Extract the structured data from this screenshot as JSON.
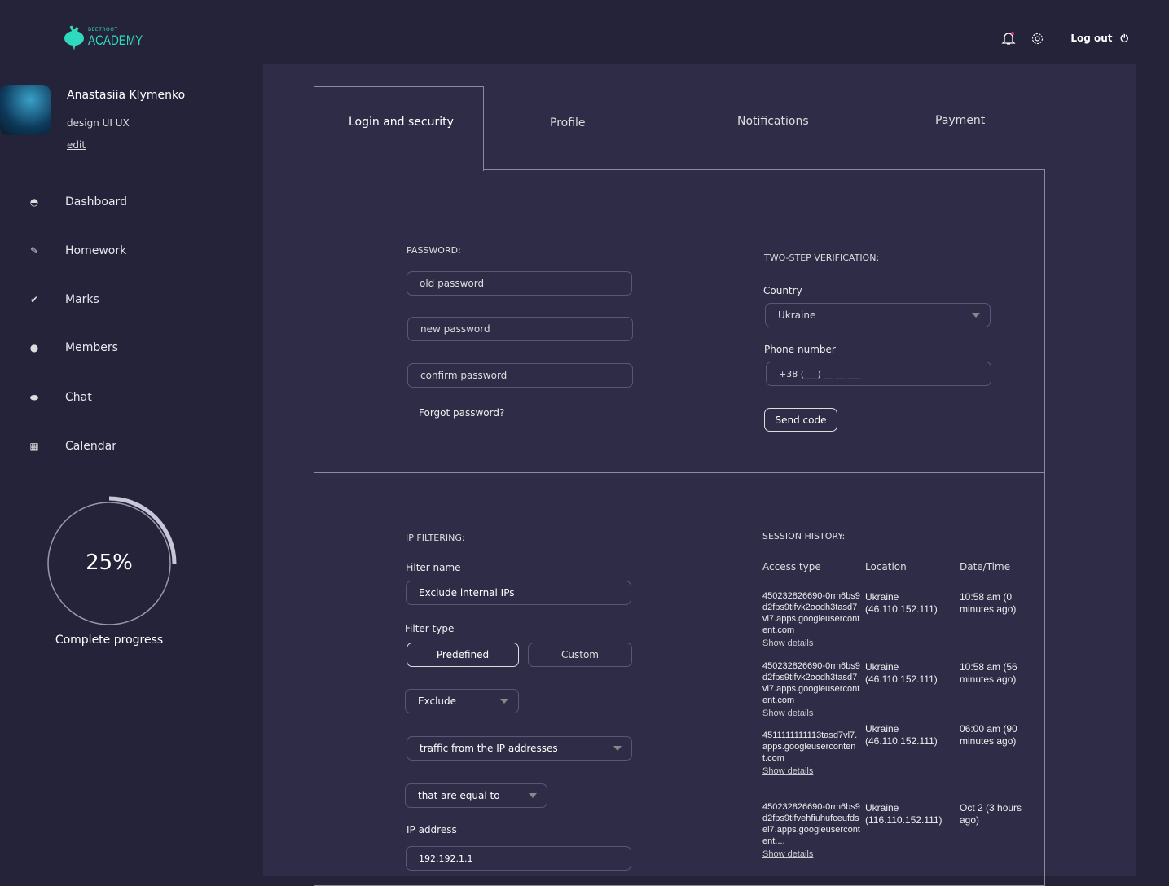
{
  "logo": {
    "small": "BEETROOT",
    "big": "ACADEMY"
  },
  "topbar": {
    "logout": "Log out"
  },
  "user": {
    "name": "Anastasiia Klymenko",
    "role": "design UI UX",
    "edit": "edit"
  },
  "nav": [
    {
      "label": "Dashboard",
      "icon": "dashboard-icon"
    },
    {
      "label": "Homework",
      "icon": "pencil-icon"
    },
    {
      "label": "Marks",
      "icon": "check-icon"
    },
    {
      "label": "Members",
      "icon": "person-icon"
    },
    {
      "label": "Chat",
      "icon": "chat-icon"
    },
    {
      "label": "Calendar",
      "icon": "calendar-icon"
    }
  ],
  "progress": {
    "value": 25,
    "text": "25%",
    "label": "Complete progress"
  },
  "tabs": [
    "Login and security",
    "Profile",
    "Notifications",
    "Payment"
  ],
  "password": {
    "title": "PASSWORD:",
    "old": "old password",
    "new": "new password",
    "confirm": "confirm password",
    "forgot": "Forgot password?"
  },
  "twostep": {
    "title": "TWO-STEP VERIFICATION:",
    "country_label": "Country",
    "country": "Ukraine",
    "phone_label": "Phone number",
    "phone": "+38 (___) __ __ ___",
    "send": "Send code"
  },
  "ip": {
    "title": "IP FILTERING:",
    "name_label": "Filter name",
    "name": "Exclude internal IPs",
    "type_label": "Filter type",
    "predefined": "Predefined",
    "custom": "Custom",
    "exclude": "Exclude",
    "traffic": "traffic from the IP addresses",
    "equal": "that are equal to",
    "addr_label": "IP address",
    "addr": "192.192.1.1"
  },
  "session": {
    "title": "SESSION HISTORY:",
    "headers": [
      "Access type",
      "Location",
      "Date/Time"
    ],
    "show": "Show details",
    "rows": [
      {
        "access": "450232826690-0rm6bs9d2fps9tifvk2oodh3tasd7vl7.apps.googleusercontent.com",
        "loc": "Ukraine (46.110.152.111)",
        "time": "10:58 am (0 minutes ago)"
      },
      {
        "access": "450232826690-0rm6bs9d2fps9tifvk2oodh3tasd7vl7.apps.googleusercontent.com",
        "loc": "Ukraine (46.110.152.111)",
        "time": "10:58 am (56 minutes ago)"
      },
      {
        "access": "4511111111113tasd7vl7.apps.googleusercontent.com",
        "loc": "Ukraine (46.110.152.111)",
        "time": "06:00 am (90 minutes ago)"
      },
      {
        "access": "450232826690-0rm6bs9d2fps9tifvehfiuhufceufdsel7.apps.googleusercontent....",
        "loc": "Ukraine (116.110.152.111)",
        "time": "Oct 2 (3 hours ago)"
      }
    ]
  },
  "colors": {
    "accent": "#2fd9bd",
    "bg": "#252339",
    "panel": "#2f2c48",
    "notify": "#e8336e"
  }
}
